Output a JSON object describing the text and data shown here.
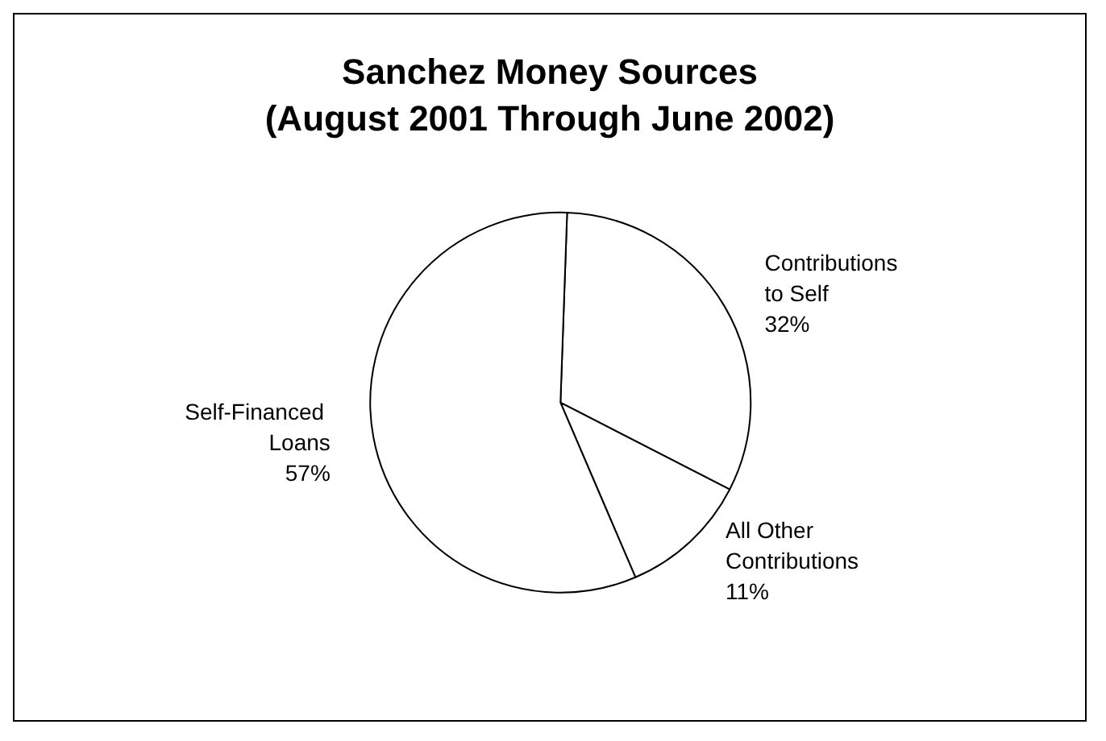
{
  "chart_data": {
    "type": "pie",
    "title": "Sanchez Money Sources (August 2001 Through June 2002)",
    "categories": [
      "Contributions to Self",
      "All Other Contributions",
      "Self-Financed Loans"
    ],
    "values": [
      32,
      11,
      57
    ],
    "colors": [
      "#ffffff",
      "#ffffff",
      "#ffffff"
    ],
    "value_labels": [
      "32%",
      "11%",
      "57%"
    ]
  }
}
